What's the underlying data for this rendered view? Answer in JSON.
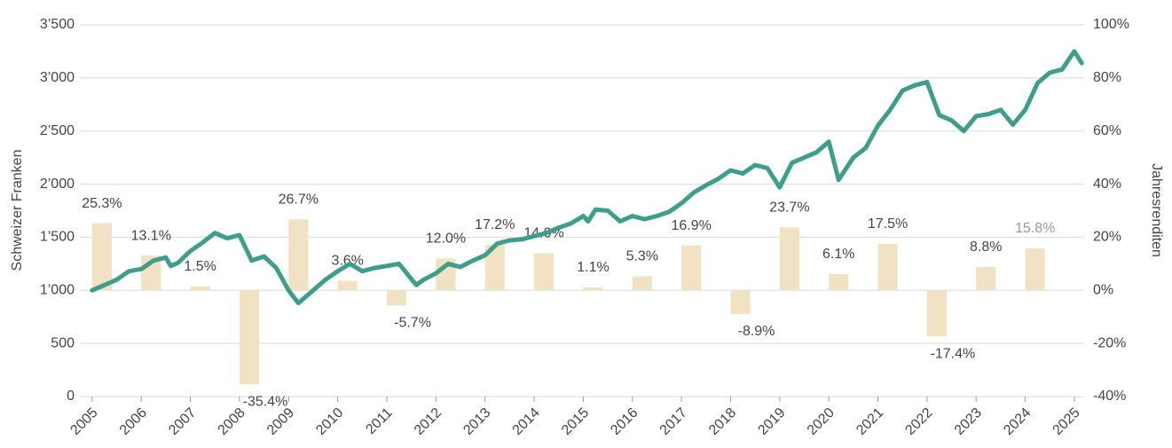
{
  "chart_data": {
    "type": "line",
    "y_label": "Schweizer Franken",
    "y2_label": "Jahresrenditen",
    "xlim": [
      2004.75,
      2025.2
    ],
    "xticks": [
      2005,
      2006,
      2007,
      2008,
      2009,
      2010,
      2011,
      2012,
      2013,
      2014,
      2015,
      2016,
      2017,
      2018,
      2019,
      2020,
      2021,
      2022,
      2023,
      2024,
      2025
    ],
    "ylim": [
      0,
      3500
    ],
    "yticks": [
      0,
      500,
      {
        "value": 1000,
        "label": "1’000"
      },
      {
        "value": 1500,
        "label": "1’500"
      },
      {
        "value": 2000,
        "label": "2’000"
      },
      {
        "value": 2500,
        "label": "2’500"
      },
      {
        "value": 3000,
        "label": "3’000"
      },
      {
        "value": 3500,
        "label": "3’500"
      }
    ],
    "y2lim": [
      -40,
      100
    ],
    "y2ticks": [
      {
        "value": -40,
        "label": "-40%"
      },
      {
        "value": -20,
        "label": "-20%"
      },
      {
        "value": 0,
        "label": "0%"
      },
      {
        "value": 20,
        "label": "20%"
      },
      {
        "value": 40,
        "label": "40%"
      },
      {
        "value": 60,
        "label": "60%"
      },
      {
        "value": 80,
        "label": "80%"
      },
      {
        "value": 100,
        "label": "100%"
      }
    ],
    "grid": true,
    "series": [
      {
        "type": "bar",
        "axis": "y2",
        "color": "#f0e2c2",
        "x": [
          2005,
          2006,
          2007,
          2008,
          2009,
          2010,
          2011,
          2012,
          2013,
          2014,
          2015,
          2016,
          2017,
          2018,
          2019,
          2020,
          2021,
          2022,
          2023,
          2024
        ],
        "values": [
          25.3,
          13.1,
          1.5,
          -35.4,
          26.7,
          3.6,
          -5.7,
          12.0,
          17.2,
          14.0,
          1.1,
          5.3,
          16.9,
          -8.9,
          23.7,
          6.1,
          17.5,
          -17.4,
          8.8,
          15.8
        ],
        "value_labels": [
          "25.3%",
          "13.1%",
          "1.5%",
          "-35.4%",
          "26.7%",
          "3.6%",
          "-5.7%",
          "12.0%",
          "17.2%",
          "14.0%",
          "1.1%",
          "5.3%",
          "16.9%",
          "-8.9%",
          "23.7%",
          "6.1%",
          "17.5%",
          "-17.4%",
          "8.8%",
          "15.8%"
        ]
      },
      {
        "type": "line",
        "axis": "y",
        "color": "#3f9e8a",
        "x": [
          2005,
          2005.25,
          2005.5,
          2005.75,
          2006,
          2006.25,
          2006.5,
          2006.6,
          2006.75,
          2007,
          2007.25,
          2007.5,
          2007.75,
          2008,
          2008.25,
          2008.5,
          2008.75,
          2009,
          2009.2,
          2009.5,
          2009.75,
          2010,
          2010.25,
          2010.5,
          2010.75,
          2011,
          2011.25,
          2011.6,
          2011.75,
          2012,
          2012.25,
          2012.5,
          2012.75,
          2013,
          2013.25,
          2013.5,
          2013.75,
          2014,
          2014.25,
          2014.5,
          2014.75,
          2015,
          2015.1,
          2015.25,
          2015.5,
          2015.75,
          2016,
          2016.25,
          2016.5,
          2016.75,
          2017,
          2017.25,
          2017.5,
          2017.75,
          2018,
          2018.25,
          2018.5,
          2018.75,
          2019,
          2019.25,
          2019.5,
          2019.75,
          2020,
          2020.2,
          2020.5,
          2020.75,
          2021,
          2021.25,
          2021.5,
          2021.75,
          2022,
          2022.25,
          2022.5,
          2022.75,
          2023,
          2023.25,
          2023.5,
          2023.75,
          2024,
          2024.25,
          2024.5,
          2024.75,
          2025,
          2025.15
        ],
        "values": [
          1000,
          1050,
          1100,
          1180,
          1200,
          1280,
          1310,
          1230,
          1260,
          1370,
          1450,
          1540,
          1490,
          1520,
          1280,
          1320,
          1210,
          1000,
          880,
          1000,
          1100,
          1180,
          1250,
          1180,
          1210,
          1230,
          1250,
          1050,
          1100,
          1160,
          1250,
          1220,
          1280,
          1330,
          1440,
          1470,
          1480,
          1510,
          1540,
          1590,
          1630,
          1700,
          1650,
          1760,
          1750,
          1650,
          1700,
          1670,
          1700,
          1740,
          1820,
          1920,
          1990,
          2050,
          2130,
          2100,
          2180,
          2150,
          1970,
          2200,
          2250,
          2300,
          2400,
          2040,
          2250,
          2340,
          2550,
          2700,
          2880,
          2930,
          2960,
          2650,
          2600,
          2500,
          2640,
          2660,
          2700,
          2560,
          2700,
          2950,
          3050,
          3080,
          3250,
          3140
        ]
      }
    ]
  }
}
